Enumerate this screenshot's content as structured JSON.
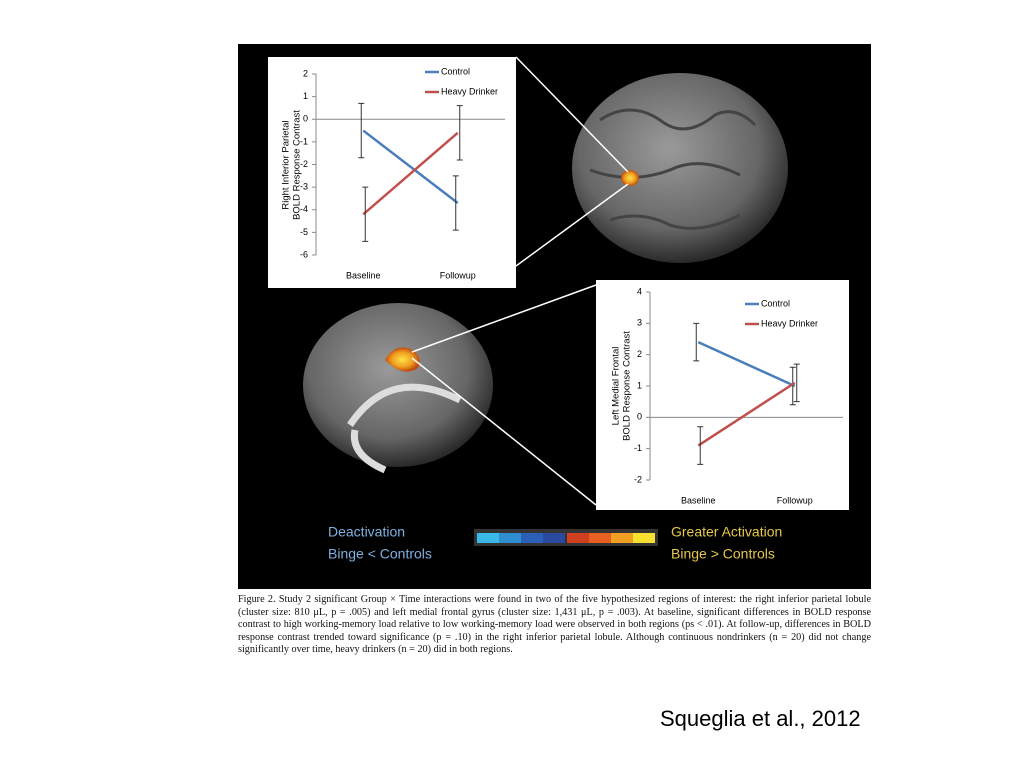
{
  "chart_data": [
    {
      "type": "line",
      "ylabel": [
        "Right Inferior Parietal",
        "BOLD Response Contrast"
      ],
      "categories": [
        "Baseline",
        "Followup"
      ],
      "series": [
        {
          "name": "Control",
          "color": "#4a7ebb",
          "values": [
            -0.5,
            -3.7
          ],
          "errors": [
            1.2,
            1.2
          ]
        },
        {
          "name": "Heavy Drinker",
          "color": "#c0504d",
          "values": [
            -4.2,
            -0.6
          ],
          "errors": [
            1.2,
            1.2
          ]
        }
      ],
      "ylim": [
        -6,
        2
      ],
      "yticks": [
        -6,
        -5,
        -4,
        -3,
        -2,
        -1,
        0,
        1,
        2
      ]
    },
    {
      "type": "line",
      "ylabel": [
        "Left Medial Frontal",
        "BOLD Response Contrast"
      ],
      "categories": [
        "Baseline",
        "Followup"
      ],
      "series": [
        {
          "name": "Control",
          "color": "#4a7ebb",
          "values": [
            2.4,
            1.0
          ],
          "errors": [
            0.6,
            0.6
          ]
        },
        {
          "name": "Heavy Drinker",
          "color": "#c0504d",
          "values": [
            -0.9,
            1.1
          ],
          "errors": [
            0.6,
            0.6
          ]
        }
      ],
      "ylim": [
        -2,
        4
      ],
      "yticks": [
        -2,
        -1,
        0,
        1,
        2,
        3,
        4
      ]
    }
  ],
  "figure": {
    "left_legend": [
      "Deactivation",
      "Binge < Controls"
    ],
    "right_legend": [
      "Greater Activation",
      "Binge > Controls"
    ],
    "caption": "Figure 2.   Study 2 significant Group × Time interactions were found in two of the five hypothesized regions of interest: the right inferior parietal lobule (cluster size: 810 μL, p = .005) and left medial frontal gyrus (cluster size: 1,431 μL, p = .003). At baseline, significant differences in BOLD response contrast to high working-memory load relative to low working-memory load were observed in both regions (ps < .01). At follow-up, differences in BOLD response contrast trended toward significance (p = .10) in the right inferior parietal lobule. Although continuous nondrinkers (n = 20) did not change significantly over time, heavy drinkers (n = 20) did in both regions."
  },
  "citation": "Squeglia et al., 2012"
}
